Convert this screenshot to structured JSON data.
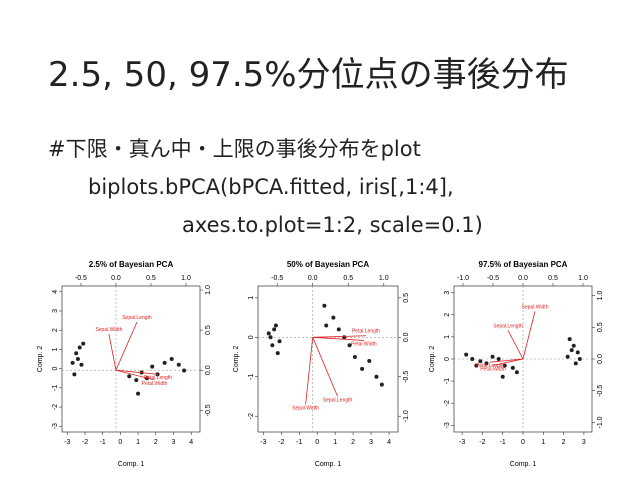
{
  "slide": {
    "title": "2.5, 50, 97.5%分位点の事後分布",
    "lines": [
      "#下限・真ん中・上限の事後分布をplot",
      "biplots.bPCA(bPCA.fitted, iris[,1:4],",
      "axes.to.plot=1:2, scale=0.1)"
    ]
  },
  "chart_data": [
    {
      "type": "scatter",
      "title": "2.5% of Bayesian PCA",
      "x_label": "Comp. 1",
      "y_label": "Comp. 2",
      "xlim": [
        -3.3,
        4.5
      ],
      "ylim": [
        -3.3,
        4.3
      ],
      "xticks": [
        -3,
        -2,
        -1,
        0,
        1,
        2,
        3,
        4
      ],
      "yticks": [
        -3,
        -2,
        -1,
        0,
        1,
        2,
        3,
        4
      ],
      "x2lim": [
        -0.77,
        1.2
      ],
      "y2lim": [
        -0.77,
        1.05
      ],
      "x2ticks": [
        -0.5,
        {
          "value": 0,
          "label": "0.0"
        },
        0.5,
        {
          "value": 1,
          "label": "1.0"
        }
      ],
      "y2ticks": [
        -0.5,
        {
          "value": 0,
          "label": "0.0"
        },
        0.5,
        {
          "value": 1,
          "label": "1.0"
        }
      ],
      "point_color": "#222222",
      "arrow_color": "#e02020",
      "x": [
        -2.7,
        -2.5,
        -2.3,
        -2.2,
        -2.6,
        -2.4,
        -2.1,
        0.5,
        0.9,
        1.2,
        1.5,
        1.8,
        2.1,
        2.5,
        2.9,
        3.3,
        3.6,
        1.0
      ],
      "y": [
        0.3,
        0.8,
        1.1,
        0.2,
        -0.3,
        0.5,
        1.3,
        -0.4,
        -0.6,
        -0.2,
        -0.5,
        0.1,
        -0.3,
        0.3,
        0.5,
        0.2,
        -0.1,
        -1.3
      ],
      "arrows": [
        {
          "name": "Sepal.Width",
          "x": -0.1,
          "y": 0.45
        },
        {
          "name": "Sepal.Length",
          "x": 0.3,
          "y": 0.6
        },
        {
          "name": "Petal.Length",
          "x": 0.6,
          "y": -0.05
        },
        {
          "name": "Petal.Width",
          "x": 0.55,
          "y": -0.12
        }
      ]
    },
    {
      "type": "scatter",
      "title": "50% of Bayesian PCA",
      "x_label": "Comp. 1",
      "y_label": "Comp. 2",
      "xlim": [
        -3.3,
        4.5
      ],
      "ylim": [
        -2.4,
        1.3
      ],
      "xticks": [
        -3,
        -2,
        -1,
        0,
        1,
        2,
        3,
        4
      ],
      "yticks": [
        -2,
        -1,
        0,
        1
      ],
      "x2lim": [
        -0.77,
        1.2
      ],
      "y2lim": [
        -1.2,
        0.65
      ],
      "x2ticks": [
        -0.5,
        {
          "value": 0,
          "label": "0.0"
        },
        0.5,
        {
          "value": 1,
          "label": "1.0"
        }
      ],
      "y2ticks": [
        {
          "value": -1,
          "label": "-1.0"
        },
        -0.5,
        {
          "value": 0,
          "label": "0.0"
        },
        0.5
      ],
      "point_color": "#222222",
      "arrow_color": "#e02020",
      "x": [
        -2.7,
        -2.5,
        -2.3,
        -2.2,
        -2.6,
        -2.4,
        -2.1,
        0.5,
        0.9,
        1.2,
        1.5,
        1.8,
        2.1,
        2.5,
        2.9,
        3.3,
        3.6,
        0.4
      ],
      "y": [
        0.1,
        -0.2,
        0.3,
        -0.4,
        0.0,
        0.2,
        -0.1,
        0.3,
        0.5,
        0.2,
        0.0,
        -0.2,
        -0.5,
        -0.8,
        -0.6,
        -1.0,
        -1.2,
        0.8
      ],
      "arrows": [
        {
          "name": "Sepal.Width",
          "x": -0.1,
          "y": -0.85
        },
        {
          "name": "Sepal.Length",
          "x": 0.35,
          "y": -0.75
        },
        {
          "name": "Petal.Length",
          "x": 0.75,
          "y": 0.02
        },
        {
          "name": "Petal.Width",
          "x": 0.72,
          "y": -0.04
        }
      ]
    },
    {
      "type": "scatter",
      "title": "97.5% of Bayesian PCA",
      "x_label": "Comp. 1",
      "y_label": "Comp. 2",
      "xlim": [
        -3.4,
        3.4
      ],
      "ylim": [
        -3.3,
        3.3
      ],
      "xticks": [
        -3,
        -2,
        -1,
        0,
        1,
        2,
        3
      ],
      "yticks": [
        -3,
        -2,
        -1,
        0,
        1,
        2,
        3
      ],
      "x2lim": [
        -1.15,
        1.15
      ],
      "y2lim": [
        -1.15,
        1.15
      ],
      "x2ticks": [
        {
          "value": -1,
          "label": "-1.0"
        },
        -0.5,
        {
          "value": 0,
          "label": "0.0"
        },
        0.5,
        {
          "value": 1,
          "label": "1.0"
        }
      ],
      "y2ticks": [
        {
          "value": -1,
          "label": "-1.0"
        },
        -0.5,
        {
          "value": 0,
          "label": "0.0"
        },
        0.5,
        {
          "value": 1,
          "label": "1.0"
        }
      ],
      "point_color": "#222222",
      "arrow_color": "#e02020",
      "x": [
        2.7,
        2.5,
        2.3,
        2.2,
        2.6,
        2.4,
        2.8,
        -0.5,
        -0.9,
        -1.2,
        -1.5,
        -1.8,
        -2.1,
        -2.5,
        -2.8,
        -1.0,
        -0.3,
        -2.3
      ],
      "y": [
        0.3,
        0.6,
        0.9,
        0.1,
        -0.2,
        0.4,
        0.0,
        -0.4,
        -0.3,
        0.0,
        0.1,
        -0.2,
        -0.1,
        0.0,
        0.2,
        -0.8,
        -0.6,
        -0.3
      ],
      "arrows": [
        {
          "name": "Sepal.Width",
          "x": 0.2,
          "y": 0.75
        },
        {
          "name": "Sepal.Length",
          "x": -0.25,
          "y": 0.45
        },
        {
          "name": "Petal.Length",
          "x": -0.55,
          "y": -0.05
        },
        {
          "name": "Petal.Width",
          "x": -0.5,
          "y": -0.1
        }
      ]
    }
  ]
}
